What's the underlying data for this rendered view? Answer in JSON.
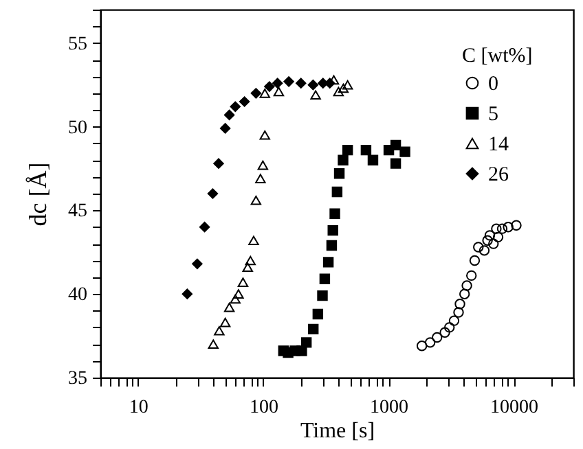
{
  "chart_data": {
    "type": "scatter",
    "xlabel": "Time  [s]",
    "ylabel": "dc  [Å]",
    "legend_title": "C  [wt%]",
    "legend": "top right",
    "log": "x",
    "grid": false,
    "xlim": [
      5,
      30000
    ],
    "ylim": [
      35,
      57
    ],
    "xticks": [
      {
        "value": 5,
        "label": null
      },
      {
        "value": 6,
        "label": null
      },
      {
        "value": 7,
        "label": null
      },
      {
        "value": 8,
        "label": null
      },
      {
        "value": 9,
        "label": null
      },
      10,
      {
        "value": 20,
        "label": null
      },
      {
        "value": 30,
        "label": null
      },
      {
        "value": 40,
        "label": null
      },
      {
        "value": 50,
        "label": null
      },
      {
        "value": 60,
        "label": null
      },
      {
        "value": 70,
        "label": null
      },
      {
        "value": 80,
        "label": null
      },
      {
        "value": 90,
        "label": null
      },
      100,
      {
        "value": 200,
        "label": null
      },
      {
        "value": 300,
        "label": null
      },
      {
        "value": 400,
        "label": null
      },
      {
        "value": 500,
        "label": null
      },
      {
        "value": 600,
        "label": null
      },
      {
        "value": 700,
        "label": null
      },
      {
        "value": 800,
        "label": null
      },
      {
        "value": 900,
        "label": null
      },
      1000,
      {
        "value": 2000,
        "label": null
      },
      {
        "value": 3000,
        "label": null
      },
      {
        "value": 4000,
        "label": null
      },
      {
        "value": 5000,
        "label": null
      },
      {
        "value": 6000,
        "label": null
      },
      {
        "value": 7000,
        "label": null
      },
      {
        "value": 8000,
        "label": null
      },
      {
        "value": 9000,
        "label": null
      },
      10000,
      {
        "value": 20000,
        "label": null
      },
      {
        "value": 30000,
        "label": null
      }
    ],
    "yticks": [
      35,
      {
        "value": 36,
        "label": null
      },
      {
        "value": 37,
        "label": null
      },
      {
        "value": 38,
        "label": null
      },
      {
        "value": 39,
        "label": null
      },
      40,
      {
        "value": 41,
        "label": null
      },
      {
        "value": 42,
        "label": null
      },
      {
        "value": 43,
        "label": null
      },
      {
        "value": 44,
        "label": null
      },
      45,
      {
        "value": 46,
        "label": null
      },
      {
        "value": 47,
        "label": null
      },
      {
        "value": 48,
        "label": null
      },
      {
        "value": 49,
        "label": null
      },
      50,
      {
        "value": 51,
        "label": null
      },
      {
        "value": 52,
        "label": null
      },
      {
        "value": 53,
        "label": null
      },
      {
        "value": 54,
        "label": null
      },
      55,
      {
        "value": 56,
        "label": null
      },
      {
        "value": 57,
        "label": null
      }
    ],
    "series": [
      {
        "name": "0",
        "color": "#000000",
        "marker": "circle",
        "x": [
          1849,
          2153,
          2445,
          2823,
          3070,
          3343,
          3631,
          3725,
          4054,
          4230,
          4600,
          4886,
          5224,
          5834,
          6184,
          6450,
          6900,
          7270,
          7513,
          8100,
          9040,
          10500
        ],
        "values": [
          36.9,
          37.1,
          37.4,
          37.7,
          38.0,
          38.4,
          38.9,
          39.4,
          40.0,
          40.5,
          41.1,
          42.0,
          42.8,
          42.6,
          43.2,
          43.5,
          43.0,
          43.9,
          43.4,
          43.9,
          44.0,
          44.1
        ]
      },
      {
        "name": "5",
        "color": "#000000",
        "marker": "square",
        "x": [
          145,
          158,
          179,
          203,
          221,
          251,
          273,
          297,
          310,
          331,
          352,
          360,
          373,
          389,
          405,
          434,
          472,
          662,
          752,
          1007,
          1143,
          1143,
          1355
        ],
        "values": [
          36.6,
          36.5,
          36.6,
          36.6,
          37.1,
          37.9,
          38.8,
          39.9,
          40.9,
          41.9,
          42.9,
          43.8,
          44.8,
          46.1,
          47.2,
          48.0,
          48.6,
          48.6,
          48.0,
          48.6,
          47.8,
          48.9,
          48.5
        ]
      },
      {
        "name": "14",
        "color": "#000000",
        "marker": "triangle",
        "x": [
          39.9,
          44.5,
          49.7,
          53.6,
          59.8,
          63.4,
          68.9,
          75.1,
          79,
          83.8,
          87.5,
          95,
          99.3,
          103,
          103,
          133,
          262,
          336,
          366,
          399,
          436,
          472
        ],
        "values": [
          37.0,
          37.8,
          38.3,
          39.2,
          39.7,
          40.0,
          40.7,
          41.6,
          42.0,
          43.2,
          45.6,
          46.9,
          47.7,
          49.5,
          52.0,
          52.1,
          51.9,
          null,
          52.8,
          52.1,
          52.3,
          52.5
        ]
      },
      {
        "name": "26",
        "color": "#000000",
        "marker": "diamond",
        "x": [
          24.7,
          29.7,
          34,
          39.5,
          44,
          49.7,
          53.6,
          59.8,
          70.8,
          87.5,
          112,
          130,
          160,
          200,
          250,
          300,
          340
        ],
        "values": [
          40.0,
          41.8,
          44.0,
          46.0,
          47.8,
          49.9,
          50.7,
          51.2,
          51.5,
          52.0,
          52.4,
          52.6,
          52.7,
          52.6,
          52.5,
          52.6,
          52.6
        ]
      }
    ]
  }
}
